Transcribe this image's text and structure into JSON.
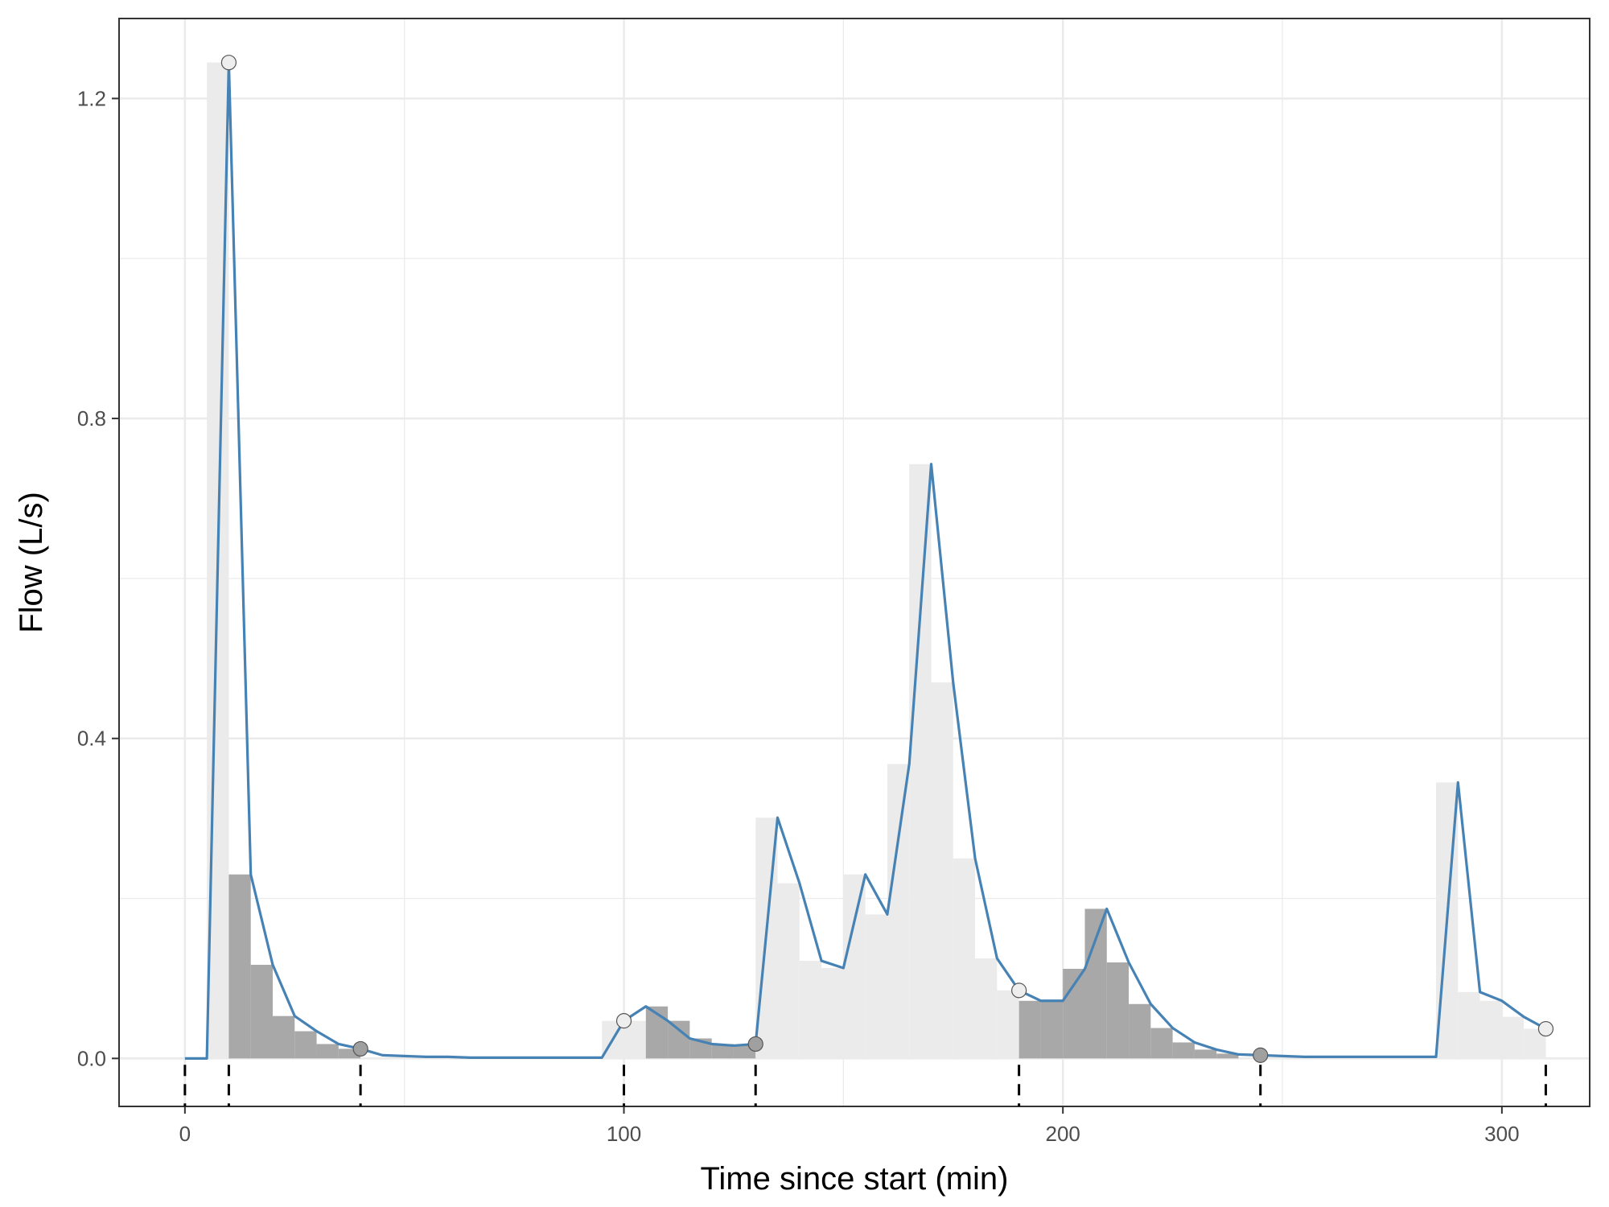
{
  "chart_data": {
    "type": "bar",
    "title": "",
    "xlabel": "Time since start (min)",
    "ylabel": "Flow (L/s)",
    "xlim": [
      -15,
      320
    ],
    "ylim": [
      -0.06,
      1.3
    ],
    "x_ticks": [
      0,
      100,
      200,
      300
    ],
    "x_tick_labels": [
      "0",
      "100",
      "200",
      "300"
    ],
    "y_ticks": [
      0.0,
      0.4,
      0.8,
      1.2
    ],
    "y_tick_labels": [
      "0.0",
      "0.4",
      "0.8",
      "1.2"
    ],
    "grid": true,
    "bar_width": 5,
    "bars": [
      {
        "x": 95,
        "value": 0.047,
        "shade": "light"
      },
      {
        "x": 100,
        "value": 0.047,
        "shade": "light"
      },
      {
        "x": 5,
        "value": 1.245,
        "shade": "light"
      },
      {
        "x": 10,
        "value": 0.23,
        "shade": "dark"
      },
      {
        "x": 15,
        "value": 0.117,
        "shade": "dark"
      },
      {
        "x": 20,
        "value": 0.053,
        "shade": "dark"
      },
      {
        "x": 25,
        "value": 0.034,
        "shade": "dark"
      },
      {
        "x": 30,
        "value": 0.018,
        "shade": "dark"
      },
      {
        "x": 35,
        "value": 0.012,
        "shade": "dark"
      },
      {
        "x": 105,
        "value": 0.065,
        "shade": "dark"
      },
      {
        "x": 110,
        "value": 0.047,
        "shade": "dark"
      },
      {
        "x": 115,
        "value": 0.025,
        "shade": "dark"
      },
      {
        "x": 120,
        "value": 0.018,
        "shade": "dark"
      },
      {
        "x": 125,
        "value": 0.016,
        "shade": "dark"
      },
      {
        "x": 130,
        "value": 0.301,
        "shade": "light"
      },
      {
        "x": 135,
        "value": 0.219,
        "shade": "light"
      },
      {
        "x": 140,
        "value": 0.122,
        "shade": "light"
      },
      {
        "x": 145,
        "value": 0.113,
        "shade": "light"
      },
      {
        "x": 150,
        "value": 0.23,
        "shade": "light"
      },
      {
        "x": 155,
        "value": 0.18,
        "shade": "light"
      },
      {
        "x": 160,
        "value": 0.368,
        "shade": "light"
      },
      {
        "x": 165,
        "value": 0.743,
        "shade": "light"
      },
      {
        "x": 170,
        "value": 0.47,
        "shade": "light"
      },
      {
        "x": 175,
        "value": 0.25,
        "shade": "light"
      },
      {
        "x": 180,
        "value": 0.125,
        "shade": "light"
      },
      {
        "x": 185,
        "value": 0.085,
        "shade": "light"
      },
      {
        "x": 190,
        "value": 0.072,
        "shade": "dark"
      },
      {
        "x": 195,
        "value": 0.072,
        "shade": "dark"
      },
      {
        "x": 200,
        "value": 0.112,
        "shade": "dark"
      },
      {
        "x": 205,
        "value": 0.187,
        "shade": "dark"
      },
      {
        "x": 210,
        "value": 0.12,
        "shade": "dark"
      },
      {
        "x": 215,
        "value": 0.068,
        "shade": "dark"
      },
      {
        "x": 220,
        "value": 0.038,
        "shade": "dark"
      },
      {
        "x": 225,
        "value": 0.02,
        "shade": "dark"
      },
      {
        "x": 230,
        "value": 0.011,
        "shade": "dark"
      },
      {
        "x": 235,
        "value": 0.006,
        "shade": "dark"
      },
      {
        "x": 285,
        "value": 0.345,
        "shade": "light"
      },
      {
        "x": 290,
        "value": 0.083,
        "shade": "light"
      },
      {
        "x": 295,
        "value": 0.072,
        "shade": "light"
      },
      {
        "x": 300,
        "value": 0.052,
        "shade": "light"
      },
      {
        "x": 305,
        "value": 0.037,
        "shade": "light"
      }
    ],
    "series": [
      {
        "x": [
          0,
          5,
          10,
          15,
          20,
          25,
          30,
          35,
          40,
          45,
          50,
          55,
          60,
          65,
          70,
          75,
          80,
          85,
          90,
          95,
          100,
          105,
          110,
          115,
          120,
          125,
          130,
          135,
          140,
          145,
          150,
          155,
          160,
          165,
          170,
          175,
          180,
          185,
          190,
          195,
          200,
          205,
          210,
          215,
          220,
          225,
          230,
          235,
          240,
          245,
          250,
          255,
          260,
          265,
          270,
          275,
          280,
          285,
          290,
          295,
          300,
          305,
          310
        ],
        "values": [
          0.0,
          0.0,
          1.245,
          0.23,
          0.117,
          0.053,
          0.034,
          0.018,
          0.012,
          0.004,
          0.003,
          0.002,
          0.002,
          0.001,
          0.001,
          0.001,
          0.001,
          0.001,
          0.001,
          0.001,
          0.047,
          0.065,
          0.047,
          0.025,
          0.018,
          0.016,
          0.018,
          0.301,
          0.219,
          0.122,
          0.113,
          0.23,
          0.18,
          0.368,
          0.743,
          0.47,
          0.25,
          0.125,
          0.085,
          0.072,
          0.072,
          0.112,
          0.187,
          0.12,
          0.068,
          0.038,
          0.02,
          0.011,
          0.005,
          0.004,
          0.003,
          0.002,
          0.002,
          0.002,
          0.002,
          0.002,
          0.002,
          0.002,
          0.345,
          0.083,
          0.072,
          0.052,
          0.037
        ]
      }
    ],
    "points": [
      {
        "x": 10,
        "y": 1.245,
        "shade": "light"
      },
      {
        "x": 40,
        "y": 0.012,
        "shade": "dark"
      },
      {
        "x": 100,
        "y": 0.047,
        "shade": "light"
      },
      {
        "x": 130,
        "y": 0.018,
        "shade": "dark"
      },
      {
        "x": 190,
        "y": 0.085,
        "shade": "light"
      },
      {
        "x": 245,
        "y": 0.004,
        "shade": "dark"
      },
      {
        "x": 310,
        "y": 0.037,
        "shade": "light"
      }
    ],
    "event_markers_x": [
      0,
      10,
      40,
      100,
      130,
      190,
      245,
      310
    ],
    "colors": {
      "line": "#4682b4",
      "bar_light": "#ebebeb",
      "bar_dark": "#a8a8a8",
      "point_light": "#eeeeee",
      "point_dark": "#a0a0a0",
      "grid": "#ebebeb",
      "panel_border": "#333333",
      "marker": "#000000"
    }
  }
}
